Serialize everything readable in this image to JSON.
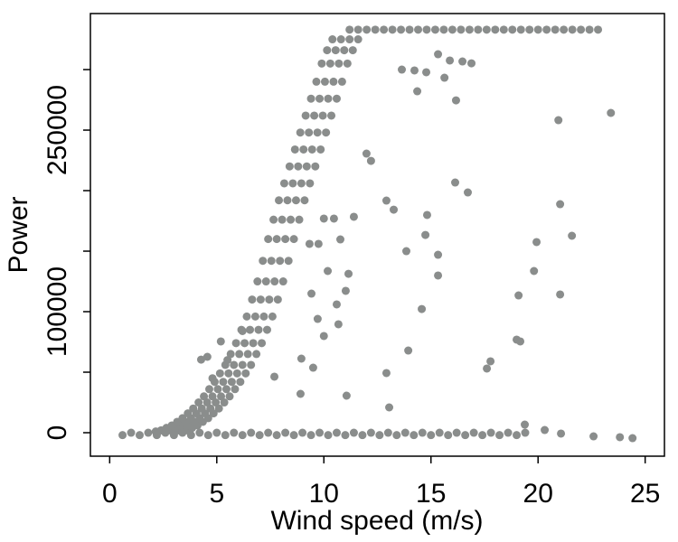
{
  "chart_data": {
    "type": "scatter",
    "x_label": "Wind speed (m/s)",
    "y_label": "Power",
    "xlim": [
      -0.9,
      25.9
    ],
    "ylim": [
      -19400,
      346300
    ],
    "xticks": [
      0,
      5,
      10,
      15,
      20,
      25
    ],
    "yticks": [
      0,
      100000,
      250000
    ],
    "yminorticks": [
      50000,
      150000,
      200000,
      300000
    ],
    "series": [
      {
        "color": "#8a8d8c",
        "x": [
          2.15,
          2.55,
          2.95,
          3.35,
          2.4,
          2.8,
          3.2,
          3.6,
          2.65,
          3.05,
          3.45,
          3.85,
          2.9,
          3.3,
          3.7,
          4.1,
          3.15,
          3.55,
          3.95,
          4.35,
          3.4,
          3.8,
          4.2,
          4.6,
          3.65,
          4.05,
          4.45,
          4.85,
          3.9,
          4.3,
          4.7,
          5.1,
          4.15,
          4.55,
          4.95,
          5.35,
          4.4,
          4.8,
          5.2,
          5.6,
          4.65,
          5.05,
          5.45,
          5.85,
          4.9,
          5.3,
          5.7,
          6.1,
          5.15,
          5.55,
          5.95,
          6.35,
          5.4,
          5.8,
          6.2,
          6.6,
          5.65,
          6.05,
          6.45,
          6.85,
          5.9,
          6.3,
          6.7,
          7.1,
          6.15,
          6.55,
          6.95,
          7.35,
          6.4,
          6.8,
          7.2,
          7.6,
          6.65,
          7.05,
          7.45,
          7.85,
          6.9,
          7.3,
          7.7,
          8.1,
          7.15,
          7.55,
          7.95,
          8.35,
          7.4,
          7.8,
          8.2,
          8.6,
          7.65,
          8.05,
          8.45,
          8.85,
          7.9,
          8.3,
          8.7,
          9.1,
          8.15,
          8.55,
          8.95,
          9.35,
          8.4,
          8.8,
          9.2,
          9.6,
          8.65,
          9.05,
          9.45,
          9.85,
          8.9,
          9.3,
          9.7,
          10.1,
          9.15,
          9.55,
          9.95,
          10.35,
          9.4,
          9.8,
          10.2,
          10.6,
          9.65,
          10.05,
          10.45,
          10.85,
          9.9,
          10.3,
          10.7,
          11.1,
          10.15,
          10.55,
          10.95,
          11.35,
          10.4,
          10.8,
          11.2,
          11.6,
          11.2,
          11.6,
          12.0,
          12.4,
          12.8,
          13.2,
          13.6,
          14.0,
          14.4,
          14.8,
          15.2,
          15.6,
          16.0,
          16.4,
          16.8,
          17.2,
          17.6,
          18.0,
          18.4,
          18.8,
          19.2,
          19.6,
          20.0,
          20.4,
          20.8,
          21.2,
          21.6,
          22.0,
          22.4,
          22.8,
          0.6,
          1.0,
          1.4,
          1.8,
          2.2,
          2.6,
          3.0,
          3.4,
          3.8,
          4.2,
          4.6,
          5.0,
          5.4,
          5.8,
          6.2,
          6.6,
          7.0,
          7.4,
          7.8,
          8.2,
          8.6,
          9.0,
          9.4,
          9.8,
          10.2,
          10.6,
          11.0,
          11.4,
          11.8,
          12.2,
          12.6,
          13.0,
          13.4,
          13.8,
          14.2,
          14.6,
          15.0,
          15.4,
          15.8,
          16.2,
          16.6,
          17.0,
          17.4,
          17.8,
          18.2,
          18.6,
          19.0,
          19.4,
          13.64,
          14.23,
          14.78,
          15.33,
          15.88,
          16.47,
          16.89,
          15.63,
          16.17,
          14.36,
          23.4,
          20.95,
          11.99,
          12.2,
          16.13,
          16.72,
          12.92,
          13.26,
          11.4,
          10.0,
          10.47,
          14.82,
          21.03,
          14.74,
          10.77,
          9.75,
          9.33,
          13.85,
          19.93,
          21.58,
          15.33,
          10.18,
          11.15,
          15.33,
          19.81,
          9.42,
          11.02,
          19.09,
          21.03,
          10.6,
          14.57,
          9.71,
          10.68,
          10.0,
          13.94,
          19.0,
          19.17,
          17.78,
          17.61,
          8.95,
          9.5,
          12.92,
          7.69,
          8.91,
          11.06,
          13.05,
          19.38,
          20.31,
          23.82,
          24.41,
          22.59,
          21.07,
          4.27,
          4.56,
          5.19,
          4.8,
          5.5,
          6.2
        ],
        "values": [
          1000,
          1000,
          1000,
          1000,
          2000,
          2000,
          2000,
          2000,
          4000,
          4000,
          4000,
          4000,
          6000,
          6000,
          6000,
          6000,
          9000,
          9000,
          9000,
          9000,
          12000,
          12000,
          12000,
          12000,
          16000,
          16000,
          16000,
          16000,
          20000,
          20000,
          20000,
          20000,
          25000,
          25000,
          25000,
          25000,
          30000,
          30000,
          30000,
          30000,
          36000,
          36000,
          36000,
          36000,
          42000,
          42000,
          42000,
          42000,
          49000,
          49000,
          49000,
          49000,
          56000,
          56000,
          56000,
          56000,
          65000,
          65000,
          65000,
          65000,
          74000,
          74000,
          74000,
          74000,
          85000,
          85000,
          85000,
          85000,
          96000,
          96000,
          96000,
          96000,
          110000,
          110000,
          110000,
          110000,
          125000,
          125000,
          125000,
          125000,
          142000,
          142000,
          142000,
          142000,
          160000,
          160000,
          160000,
          160000,
          176000,
          176000,
          176000,
          176000,
          192000,
          192000,
          192000,
          192000,
          206000,
          206000,
          206000,
          206000,
          220000,
          220000,
          220000,
          220000,
          234000,
          234000,
          234000,
          234000,
          248000,
          248000,
          248000,
          248000,
          262000,
          262000,
          262000,
          262000,
          276000,
          276000,
          276000,
          276000,
          290000,
          290000,
          290000,
          290000,
          305000,
          305000,
          305000,
          305000,
          316000,
          316000,
          316000,
          316000,
          325000,
          325000,
          325000,
          325000,
          333000,
          333000,
          333000,
          333000,
          333000,
          333000,
          333000,
          333000,
          333000,
          333000,
          333000,
          333000,
          333000,
          333000,
          333000,
          333000,
          333000,
          333000,
          333000,
          333000,
          333000,
          333000,
          333000,
          333000,
          333000,
          333000,
          333000,
          333000,
          333000,
          333000,
          -2000,
          0,
          -2000,
          0,
          -2000,
          0,
          -2000,
          0,
          -2000,
          0,
          -2000,
          0,
          -2000,
          0,
          -2000,
          0,
          -2000,
          0,
          -2000,
          0,
          -2000,
          0,
          -2000,
          0,
          -2000,
          0,
          -2000,
          0,
          -2000,
          0,
          -2000,
          0,
          -2000,
          0,
          -2000,
          0,
          -2000,
          0,
          -2000,
          0,
          -2000,
          0,
          -2000,
          0,
          -2000,
          0,
          -2000,
          0,
          300000,
          299300,
          297800,
          312700,
          307500,
          306700,
          305200,
          293300,
          274600,
          282100,
          264200,
          258200,
          230600,
          224600,
          206700,
          198500,
          191800,
          184300,
          178400,
          176900,
          176900,
          179900,
          188800,
          163400,
          159700,
          156000,
          156000,
          150000,
          157500,
          162700,
          147000,
          133600,
          131300,
          129900,
          133600,
          114900,
          117200,
          113400,
          114200,
          106000,
          102200,
          94000,
          89600,
          79900,
          67900,
          76900,
          75400,
          59000,
          53000,
          61200,
          53700,
          49300,
          46300,
          32100,
          30600,
          20900,
          6700,
          2200,
          -3700,
          -4500,
          -3000,
          -700,
          60400,
          62700,
          75400,
          45000,
          60000,
          84000
        ]
      }
    ]
  }
}
